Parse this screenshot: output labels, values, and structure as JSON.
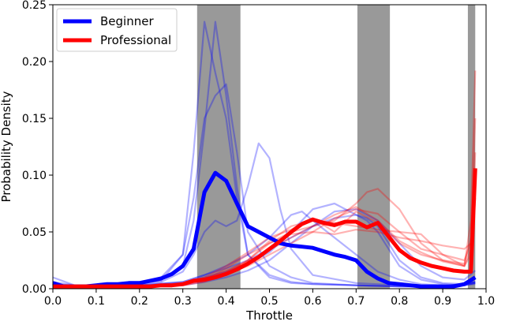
{
  "chart_data": {
    "type": "line",
    "xlabel": "Throttle",
    "ylabel": "Probability Density",
    "xlim": [
      0.0,
      1.0
    ],
    "ylim": [
      0.0,
      0.25
    ],
    "x_ticks": [
      "0.0",
      "0.1",
      "0.2",
      "0.3",
      "0.4",
      "0.5",
      "0.6",
      "0.7",
      "0.8",
      "0.9",
      "1.0"
    ],
    "y_ticks": [
      "0.00",
      "0.05",
      "0.10",
      "0.15",
      "0.20",
      "0.25"
    ],
    "shaded_regions": [
      {
        "x0": 0.333,
        "x1": 0.433
      },
      {
        "x0": 0.703,
        "x1": 0.778
      },
      {
        "x0": 0.958,
        "x1": 0.975
      }
    ],
    "shade_color": "#999999",
    "legend_position": "top-left",
    "colors": {
      "beginner": "#0000ff",
      "professional": "#ff0000"
    },
    "series": [
      {
        "name": "Beginner",
        "role": "mean",
        "x": [
          0.0,
          0.025,
          0.05,
          0.075,
          0.1,
          0.125,
          0.15,
          0.175,
          0.2,
          0.225,
          0.25,
          0.275,
          0.3,
          0.325,
          0.35,
          0.375,
          0.4,
          0.425,
          0.45,
          0.475,
          0.5,
          0.525,
          0.55,
          0.575,
          0.6,
          0.625,
          0.65,
          0.675,
          0.7,
          0.725,
          0.75,
          0.775,
          0.8,
          0.825,
          0.85,
          0.875,
          0.9,
          0.925,
          0.95,
          0.975
        ],
        "y": [
          0.005,
          0.002,
          0.002,
          0.002,
          0.003,
          0.004,
          0.004,
          0.005,
          0.005,
          0.007,
          0.009,
          0.013,
          0.02,
          0.035,
          0.085,
          0.102,
          0.095,
          0.075,
          0.055,
          0.05,
          0.045,
          0.04,
          0.038,
          0.037,
          0.036,
          0.033,
          0.03,
          0.028,
          0.025,
          0.015,
          0.009,
          0.005,
          0.004,
          0.003,
          0.002,
          0.002,
          0.002,
          0.002,
          0.004,
          0.01
        ]
      },
      {
        "name": "Professional",
        "role": "mean",
        "x": [
          0.0,
          0.025,
          0.05,
          0.075,
          0.1,
          0.125,
          0.15,
          0.175,
          0.2,
          0.225,
          0.25,
          0.275,
          0.3,
          0.325,
          0.35,
          0.375,
          0.4,
          0.425,
          0.45,
          0.475,
          0.5,
          0.525,
          0.55,
          0.575,
          0.6,
          0.625,
          0.65,
          0.675,
          0.7,
          0.725,
          0.75,
          0.775,
          0.8,
          0.825,
          0.85,
          0.875,
          0.9,
          0.925,
          0.95,
          0.965,
          0.975
        ],
        "y": [
          0.002,
          0.002,
          0.002,
          0.002,
          0.002,
          0.002,
          0.002,
          0.002,
          0.002,
          0.002,
          0.003,
          0.003,
          0.004,
          0.007,
          0.008,
          0.01,
          0.013,
          0.017,
          0.022,
          0.028,
          0.035,
          0.042,
          0.05,
          0.057,
          0.061,
          0.058,
          0.056,
          0.059,
          0.059,
          0.054,
          0.058,
          0.046,
          0.034,
          0.027,
          0.023,
          0.02,
          0.018,
          0.016,
          0.015,
          0.015,
          0.106
        ]
      },
      {
        "role": "individual",
        "group": "beginner",
        "x": [
          0.0,
          0.05,
          0.1,
          0.15,
          0.2,
          0.25,
          0.3,
          0.325,
          0.35,
          0.375,
          0.4,
          0.425,
          0.45,
          0.5,
          0.55,
          0.6,
          0.7,
          0.8,
          0.9,
          0.975
        ],
        "y": [
          0.01,
          0.003,
          0.003,
          0.004,
          0.005,
          0.007,
          0.03,
          0.12,
          0.235,
          0.19,
          0.15,
          0.08,
          0.03,
          0.01,
          0.005,
          0.004,
          0.003,
          0.002,
          0.002,
          0.006
        ]
      },
      {
        "role": "individual",
        "group": "beginner",
        "x": [
          0.0,
          0.05,
          0.1,
          0.15,
          0.2,
          0.25,
          0.3,
          0.325,
          0.35,
          0.375,
          0.4,
          0.425,
          0.45,
          0.5,
          0.55,
          0.6,
          0.7,
          0.8,
          0.9,
          0.975
        ],
        "y": [
          0.006,
          0.003,
          0.003,
          0.004,
          0.005,
          0.008,
          0.02,
          0.06,
          0.14,
          0.235,
          0.17,
          0.09,
          0.03,
          0.012,
          0.006,
          0.004,
          0.003,
          0.002,
          0.002,
          0.006
        ]
      },
      {
        "role": "individual",
        "group": "beginner",
        "x": [
          0.0,
          0.05,
          0.1,
          0.15,
          0.2,
          0.25,
          0.3,
          0.325,
          0.35,
          0.375,
          0.4,
          0.425,
          0.45,
          0.5,
          0.55,
          0.6,
          0.7,
          0.8,
          0.9,
          0.975
        ],
        "y": [
          0.004,
          0.003,
          0.003,
          0.004,
          0.005,
          0.01,
          0.03,
          0.08,
          0.15,
          0.17,
          0.18,
          0.12,
          0.05,
          0.02,
          0.01,
          0.005,
          0.003,
          0.002,
          0.002,
          0.005
        ]
      },
      {
        "role": "individual",
        "group": "beginner",
        "x": [
          0.0,
          0.05,
          0.1,
          0.15,
          0.2,
          0.25,
          0.3,
          0.325,
          0.35,
          0.375,
          0.4,
          0.425,
          0.45,
          0.475,
          0.5,
          0.525,
          0.55,
          0.6,
          0.7,
          0.8,
          0.9,
          0.975
        ],
        "y": [
          0.003,
          0.002,
          0.002,
          0.003,
          0.004,
          0.006,
          0.015,
          0.03,
          0.05,
          0.06,
          0.055,
          0.06,
          0.09,
          0.128,
          0.115,
          0.07,
          0.035,
          0.012,
          0.005,
          0.003,
          0.002,
          0.004
        ]
      },
      {
        "role": "individual",
        "group": "beginner",
        "x": [
          0.0,
          0.05,
          0.1,
          0.2,
          0.3,
          0.35,
          0.4,
          0.45,
          0.5,
          0.55,
          0.6,
          0.65,
          0.7,
          0.725,
          0.75,
          0.775,
          0.8,
          0.85,
          0.9,
          0.95,
          0.975
        ],
        "y": [
          0.003,
          0.002,
          0.002,
          0.003,
          0.006,
          0.012,
          0.018,
          0.025,
          0.035,
          0.045,
          0.055,
          0.062,
          0.065,
          0.062,
          0.055,
          0.04,
          0.025,
          0.01,
          0.005,
          0.004,
          0.006
        ]
      },
      {
        "role": "individual",
        "group": "beginner",
        "x": [
          0.0,
          0.05,
          0.1,
          0.2,
          0.3,
          0.35,
          0.4,
          0.45,
          0.5,
          0.55,
          0.6,
          0.65,
          0.7,
          0.725,
          0.75,
          0.8,
          0.85,
          0.9,
          0.95,
          0.975
        ],
        "y": [
          0.002,
          0.002,
          0.002,
          0.003,
          0.005,
          0.01,
          0.015,
          0.022,
          0.032,
          0.05,
          0.07,
          0.075,
          0.065,
          0.06,
          0.05,
          0.02,
          0.008,
          0.004,
          0.003,
          0.005
        ]
      },
      {
        "role": "individual",
        "group": "beginner",
        "x": [
          0.0,
          0.05,
          0.1,
          0.2,
          0.3,
          0.35,
          0.4,
          0.45,
          0.5,
          0.55,
          0.575,
          0.6,
          0.65,
          0.7,
          0.75,
          0.8,
          0.85,
          0.9,
          0.95,
          0.975
        ],
        "y": [
          0.004,
          0.002,
          0.002,
          0.003,
          0.006,
          0.012,
          0.02,
          0.03,
          0.045,
          0.065,
          0.068,
          0.06,
          0.045,
          0.03,
          0.015,
          0.008,
          0.004,
          0.003,
          0.003,
          0.005
        ]
      },
      {
        "role": "individual",
        "group": "beginner",
        "x": [
          0.0,
          0.05,
          0.1,
          0.2,
          0.3,
          0.35,
          0.4,
          0.45,
          0.5,
          0.55,
          0.6,
          0.65,
          0.7,
          0.75,
          0.8,
          0.85,
          0.9,
          0.95,
          0.975
        ],
        "y": [
          0.002,
          0.002,
          0.002,
          0.002,
          0.003,
          0.006,
          0.01,
          0.016,
          0.025,
          0.04,
          0.055,
          0.068,
          0.07,
          0.06,
          0.04,
          0.02,
          0.01,
          0.008,
          0.016
        ]
      },
      {
        "role": "individual",
        "group": "professional",
        "x": [
          0.0,
          0.05,
          0.1,
          0.2,
          0.3,
          0.35,
          0.4,
          0.45,
          0.5,
          0.55,
          0.6,
          0.65,
          0.7,
          0.725,
          0.75,
          0.8,
          0.85,
          0.9,
          0.95,
          0.965,
          0.975
        ],
        "y": [
          0.002,
          0.002,
          0.002,
          0.002,
          0.004,
          0.008,
          0.015,
          0.025,
          0.04,
          0.05,
          0.055,
          0.06,
          0.075,
          0.085,
          0.088,
          0.07,
          0.04,
          0.025,
          0.02,
          0.06,
          0.192
        ]
      },
      {
        "role": "individual",
        "group": "professional",
        "x": [
          0.0,
          0.05,
          0.1,
          0.2,
          0.3,
          0.35,
          0.4,
          0.45,
          0.5,
          0.55,
          0.6,
          0.65,
          0.7,
          0.75,
          0.8,
          0.85,
          0.9,
          0.95,
          0.965,
          0.975
        ],
        "y": [
          0.002,
          0.002,
          0.002,
          0.002,
          0.005,
          0.01,
          0.02,
          0.032,
          0.045,
          0.052,
          0.062,
          0.05,
          0.068,
          0.058,
          0.04,
          0.03,
          0.025,
          0.022,
          0.045,
          0.15
        ]
      },
      {
        "role": "individual",
        "group": "professional",
        "x": [
          0.0,
          0.05,
          0.1,
          0.2,
          0.3,
          0.35,
          0.4,
          0.45,
          0.5,
          0.55,
          0.6,
          0.65,
          0.7,
          0.75,
          0.8,
          0.85,
          0.9,
          0.95,
          0.965,
          0.975
        ],
        "y": [
          0.002,
          0.002,
          0.002,
          0.002,
          0.004,
          0.008,
          0.018,
          0.03,
          0.04,
          0.048,
          0.05,
          0.048,
          0.052,
          0.05,
          0.045,
          0.042,
          0.038,
          0.035,
          0.04,
          0.1
        ]
      },
      {
        "role": "individual",
        "group": "professional",
        "x": [
          0.0,
          0.05,
          0.1,
          0.2,
          0.3,
          0.35,
          0.4,
          0.45,
          0.5,
          0.55,
          0.6,
          0.65,
          0.7,
          0.75,
          0.8,
          0.85,
          0.9,
          0.95,
          0.965,
          0.975
        ],
        "y": [
          0.002,
          0.002,
          0.002,
          0.002,
          0.003,
          0.006,
          0.012,
          0.025,
          0.042,
          0.055,
          0.06,
          0.058,
          0.055,
          0.052,
          0.05,
          0.048,
          0.03,
          0.02,
          0.03,
          0.08
        ]
      },
      {
        "role": "individual",
        "group": "professional",
        "x": [
          0.0,
          0.05,
          0.1,
          0.2,
          0.3,
          0.35,
          0.4,
          0.45,
          0.5,
          0.55,
          0.6,
          0.65,
          0.7,
          0.75,
          0.8,
          0.85,
          0.9,
          0.95,
          0.965,
          0.975
        ],
        "y": [
          0.002,
          0.002,
          0.002,
          0.002,
          0.004,
          0.009,
          0.016,
          0.024,
          0.034,
          0.045,
          0.055,
          0.065,
          0.072,
          0.06,
          0.042,
          0.032,
          0.024,
          0.02,
          0.035,
          0.12
        ]
      },
      {
        "role": "individual",
        "group": "professional",
        "x": [
          0.0,
          0.05,
          0.1,
          0.2,
          0.3,
          0.35,
          0.4,
          0.45,
          0.5,
          0.55,
          0.6,
          0.65,
          0.7,
          0.75,
          0.8,
          0.85,
          0.9,
          0.95,
          0.965,
          0.975
        ],
        "y": [
          0.002,
          0.002,
          0.002,
          0.002,
          0.003,
          0.007,
          0.013,
          0.02,
          0.03,
          0.04,
          0.05,
          0.062,
          0.07,
          0.066,
          0.05,
          0.035,
          0.03,
          0.025,
          0.04,
          0.09
        ]
      }
    ]
  }
}
